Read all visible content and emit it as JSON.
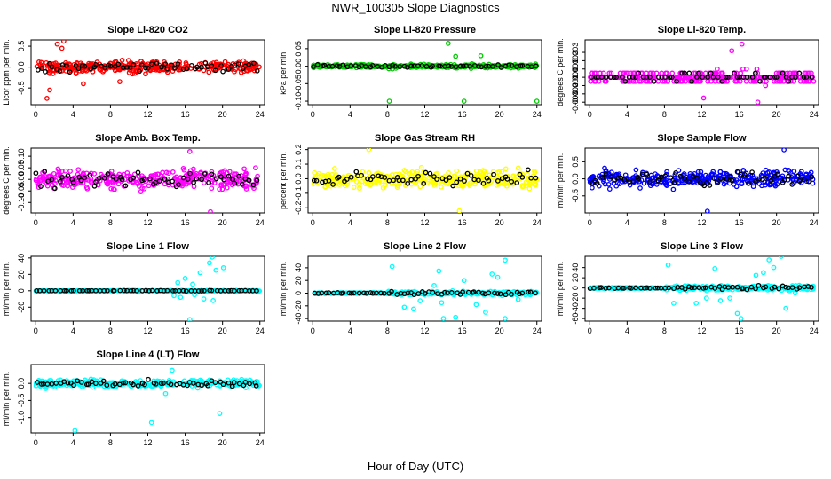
{
  "figure": {
    "title": "NWR_100305  Slope Diagnostics",
    "xlabel": "Hour of Day (UTC)"
  },
  "chart_data": [
    {
      "type": "scatter",
      "title": "Slope Li-820 CO2",
      "ylabel": "Licor ppm per min.",
      "xlim": [
        -0.5,
        24.5
      ],
      "ylim": [
        -0.9,
        0.65
      ],
      "yticks": [
        -0.5,
        0.0,
        0.5
      ],
      "ytick_labels": [
        "-0.5",
        "0.0",
        "0.5"
      ],
      "xticks": [
        0,
        4,
        8,
        12,
        16,
        20,
        24
      ],
      "series_colors": [
        "#ff0000",
        "#000000"
      ],
      "spread": 0.17,
      "outliers": [
        [
          1.2,
          -0.75
        ],
        [
          1.5,
          -0.55
        ],
        [
          2.3,
          0.55
        ],
        [
          2.8,
          0.45
        ],
        [
          3.0,
          0.62
        ],
        [
          5.1,
          -0.4
        ],
        [
          9.0,
          -0.35
        ]
      ]
    },
    {
      "type": "scatter",
      "title": "Slope Li-820 Pressure",
      "ylabel": "kPa per min.",
      "xlim": [
        -0.5,
        24.5
      ],
      "ylim": [
        -0.11,
        0.075
      ],
      "yticks": [
        -0.1,
        -0.05,
        0.0,
        0.05
      ],
      "ytick_labels": [
        "-0.10",
        "-0.05",
        "0.00",
        "0.05"
      ],
      "xticks": [
        0,
        4,
        8,
        12,
        16,
        20,
        24
      ],
      "series_colors": [
        "#00cc00",
        "#000000"
      ],
      "spread": 0.006,
      "outliers": [
        [
          8.2,
          -0.1
        ],
        [
          14.5,
          0.065
        ],
        [
          16.2,
          -0.1
        ],
        [
          24.0,
          -0.1
        ],
        [
          18.0,
          0.03
        ],
        [
          15.3,
          0.028
        ]
      ]
    },
    {
      "type": "scatter",
      "title": "Slope Li-820 Temp.",
      "ylabel": "degrees C per min.",
      "xlim": [
        -0.5,
        24.5
      ],
      "ylim": [
        -0.0033,
        0.0045
      ],
      "yticks": [
        -0.003,
        -0.002,
        -0.001,
        0.0,
        0.001,
        0.002,
        0.003
      ],
      "ytick_labels": [
        "-0.003",
        "-0.002",
        "-0.001",
        "0.000",
        "0.001",
        "0.002",
        "0.003"
      ],
      "xticks": [
        0,
        4,
        8,
        12,
        16,
        20,
        24
      ],
      "series_colors": [
        "#ff00ff",
        "#000000"
      ],
      "spread": 0.0009,
      "outliers": [
        [
          16.3,
          0.004
        ],
        [
          18.0,
          -0.003
        ],
        [
          15.2,
          0.0032
        ],
        [
          12.2,
          -0.0025
        ]
      ]
    },
    {
      "type": "scatter",
      "title": "Slope Amb. Box Temp.",
      "ylabel": "degrees C per min.",
      "xlim": [
        -0.5,
        24.5
      ],
      "ylim": [
        -0.145,
        0.135
      ],
      "yticks": [
        -0.1,
        -0.05,
        0.0,
        0.05,
        0.1
      ],
      "ytick_labels": [
        "-0.10",
        "-0.05",
        "0.00",
        "0.05",
        "0.10"
      ],
      "xticks": [
        0,
        4,
        8,
        12,
        16,
        20,
        24
      ],
      "series_colors": [
        "#ff00ff",
        "#000000"
      ],
      "spread": 0.048,
      "outliers": [
        [
          18.7,
          -0.14
        ],
        [
          16.5,
          0.12
        ]
      ]
    },
    {
      "type": "scatter",
      "title": "Slope Gas Stream RH",
      "ylabel": "percent per min.",
      "xlim": [
        -0.5,
        24.5
      ],
      "ylim": [
        -0.235,
        0.21
      ],
      "yticks": [
        -0.2,
        -0.1,
        0.0,
        0.1,
        0.2
      ],
      "ytick_labels": [
        "-0.2",
        "-0.1",
        "0.0",
        "0.1",
        "0.2"
      ],
      "xticks": [
        0,
        4,
        8,
        12,
        16,
        20,
        24
      ],
      "series_colors": [
        "#ffff00",
        "#000000"
      ],
      "spread": 0.075,
      "outliers": [
        [
          6.0,
          0.2
        ],
        [
          15.7,
          -0.22
        ]
      ]
    },
    {
      "type": "scatter",
      "title": "Slope Sample Flow",
      "ylabel": "ml/min per min.",
      "xlim": [
        -0.5,
        24.5
      ],
      "ylim": [
        -1.0,
        0.9
      ],
      "yticks": [
        -0.5,
        0.0,
        0.5
      ],
      "ytick_labels": [
        "-0.5",
        "0.0",
        "0.5"
      ],
      "xticks": [
        0,
        4,
        8,
        12,
        16,
        20,
        24
      ],
      "series_colors": [
        "#0000ff",
        "#000000"
      ],
      "spread": 0.28,
      "outliers": [
        [
          20.8,
          0.85
        ],
        [
          12.6,
          -0.95
        ]
      ]
    },
    {
      "type": "scatter",
      "title": "Slope Line 1 Flow",
      "ylabel": "ml/min per min.",
      "xlim": [
        -0.5,
        24.5
      ],
      "ylim": [
        -37,
        42
      ],
      "yticks": [
        -20,
        0,
        20,
        40
      ],
      "ytick_labels": [
        "-20",
        "0",
        "20",
        "40"
      ],
      "xticks": [
        0,
        4,
        8,
        12,
        16,
        20,
        24
      ],
      "series_colors": [
        "#00ffff",
        "#000000"
      ],
      "spread": 0.6,
      "outliers": [
        [
          15.2,
          10
        ],
        [
          16.0,
          15
        ],
        [
          16.5,
          -35
        ],
        [
          17.6,
          22
        ],
        [
          18.0,
          -10
        ],
        [
          18.6,
          34
        ],
        [
          18.9,
          41
        ],
        [
          19.3,
          25
        ],
        [
          20.1,
          28
        ],
        [
          17.0,
          -5
        ],
        [
          16.8,
          8
        ],
        [
          14.8,
          -6
        ],
        [
          19.0,
          -12
        ],
        [
          15.5,
          -8
        ]
      ]
    },
    {
      "type": "scatter",
      "title": "Slope Line 2 Flow",
      "ylabel": "ml/min per min.",
      "xlim": [
        -0.5,
        24.5
      ],
      "ylim": [
        -44,
        58
      ],
      "yticks": [
        -40,
        -20,
        0,
        20,
        40
      ],
      "ytick_labels": [
        "-40",
        "-20",
        "0",
        "20",
        "40"
      ],
      "xticks": [
        0,
        4,
        8,
        12,
        16,
        20,
        24
      ],
      "series_colors": [
        "#00ffff",
        "#000000"
      ],
      "spread": 4,
      "outliers": [
        [
          8.5,
          42
        ],
        [
          9.8,
          -22
        ],
        [
          10.8,
          -25
        ],
        [
          13.5,
          35
        ],
        [
          14.0,
          -40
        ],
        [
          15.3,
          -38
        ],
        [
          16.2,
          20
        ],
        [
          13.8,
          -15
        ],
        [
          17.5,
          -18
        ],
        [
          18.5,
          -30
        ],
        [
          19.2,
          30
        ],
        [
          19.8,
          25
        ],
        [
          20.6,
          52
        ],
        [
          22.0,
          -10
        ],
        [
          13.0,
          12
        ],
        [
          20.6,
          -40
        ],
        [
          11.5,
          -12
        ]
      ]
    },
    {
      "type": "scatter",
      "title": "Slope Line 3 Flow",
      "ylabel": "ml/min per min.",
      "xlim": [
        -0.5,
        24.5
      ],
      "ylim": [
        -65,
        62
      ],
      "yticks": [
        -60,
        -40,
        -20,
        0,
        20,
        40
      ],
      "ytick_labels": [
        "-60",
        "-40",
        "-20",
        "0",
        "20",
        "40"
      ],
      "xticks": [
        0,
        4,
        8,
        12,
        16,
        20,
        24
      ],
      "series_colors": [
        "#00ffff",
        "#000000"
      ],
      "spread": 6,
      "outliers": [
        [
          8.4,
          45
        ],
        [
          9.0,
          -30
        ],
        [
          11.4,
          -30
        ],
        [
          12.5,
          -20
        ],
        [
          13.4,
          38
        ],
        [
          14.0,
          -25
        ],
        [
          15.8,
          -50
        ],
        [
          16.2,
          -60
        ],
        [
          17.8,
          25
        ],
        [
          18.6,
          30
        ],
        [
          19.2,
          55
        ],
        [
          19.7,
          40
        ],
        [
          20.5,
          62
        ],
        [
          21.0,
          -40
        ],
        [
          22.0,
          -10
        ],
        [
          15.0,
          -20
        ]
      ]
    },
    {
      "type": "scatter",
      "title": "Slope Line 4 (LT) Flow",
      "ylabel": "ml/min per min.",
      "xlim": [
        -0.5,
        24.5
      ],
      "ylim": [
        -1.45,
        0.55
      ],
      "yticks": [
        -1.0,
        -0.5,
        0.0
      ],
      "ytick_labels": [
        "-1.0",
        "-0.5",
        "0.0"
      ],
      "xticks": [
        0,
        4,
        8,
        12,
        16,
        20,
        24
      ],
      "series_colors": [
        "#00ffff",
        "#000000"
      ],
      "spread": 0.13,
      "outliers": [
        [
          4.2,
          -1.38
        ],
        [
          12.4,
          -1.15
        ],
        [
          19.7,
          -0.88
        ],
        [
          13.9,
          -0.3
        ],
        [
          14.6,
          0.38
        ]
      ]
    }
  ]
}
